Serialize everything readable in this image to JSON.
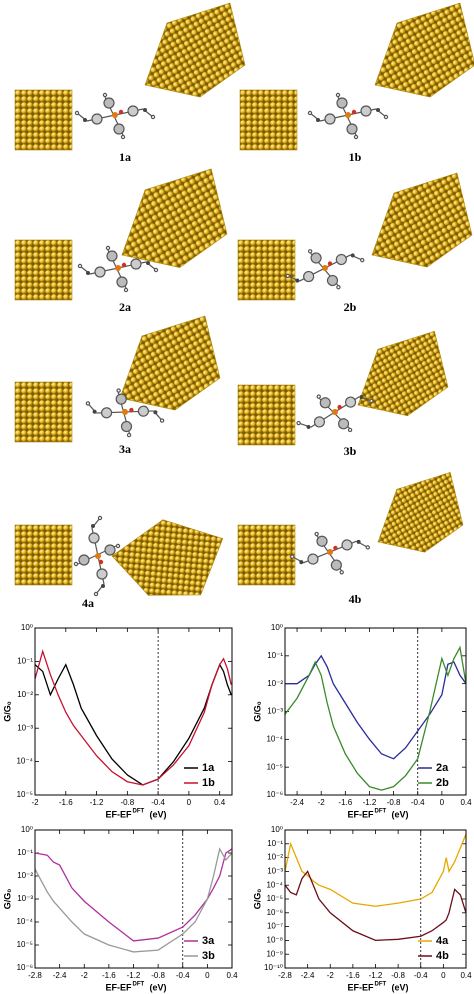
{
  "structures": {
    "labels": [
      "1a",
      "1b",
      "2a",
      "2b",
      "3a",
      "3b",
      "4a",
      "4b"
    ]
  },
  "chart_data": [
    {
      "type": "line",
      "ylog": true,
      "legend": "lower right",
      "vline": -0.4,
      "ylabel": "G/G₀",
      "xlabel": "EF-EF",
      "xlabel_sup": "DFT",
      "xlabel_unit": "(eV)",
      "xlim": [
        -2,
        0.56
      ],
      "xticks": [
        -2,
        -1.6,
        -1.2,
        -0.8,
        -0.4,
        0,
        0.4
      ],
      "ylim": [
        1e-05,
        1
      ],
      "yticks": [
        {
          "value": 1,
          "label": "10⁰"
        },
        {
          "value": 0.1,
          "label": "10⁻¹"
        },
        {
          "value": 0.01,
          "label": "10⁻²"
        },
        {
          "value": 0.001,
          "label": "10⁻³"
        },
        {
          "value": 0.0001,
          "label": "10⁻⁴"
        },
        {
          "value": 1e-05,
          "label": "10⁻⁵"
        }
      ],
      "x": [
        -2,
        -1.9,
        -1.8,
        -1.7,
        -1.6,
        -1.5,
        -1.4,
        -1.2,
        -1.0,
        -0.8,
        -0.6,
        -0.4,
        -0.2,
        0,
        0.2,
        0.3,
        0.4,
        0.45,
        0.5,
        0.55
      ],
      "series": [
        {
          "name": "1a",
          "color": "#000000",
          "values": [
            0.08,
            0.05,
            0.01,
            0.03,
            0.08,
            0.02,
            0.004,
            0.0006,
            0.00012,
            4e-05,
            2e-05,
            3e-05,
            0.0001,
            0.0005,
            0.004,
            0.02,
            0.08,
            0.05,
            0.02,
            0.01
          ]
        },
        {
          "name": "1b",
          "color": "#c8102e",
          "values": [
            0.03,
            0.2,
            0.04,
            0.01,
            0.003,
            0.0012,
            0.0006,
            0.00015,
            5e-05,
            2.5e-05,
            2e-05,
            3e-05,
            8e-05,
            0.0003,
            0.003,
            0.02,
            0.08,
            0.12,
            0.06,
            0.02
          ]
        }
      ]
    },
    {
      "type": "line",
      "ylog": true,
      "legend": "lower right",
      "vline": -0.4,
      "ylabel": "G/G₀",
      "xlabel": "EF-EF",
      "xlabel_sup": "DFT",
      "xlabel_unit": "(eV)",
      "xlim": [
        -2.6,
        0.4
      ],
      "xticks": [
        -2.4,
        -2,
        -1.6,
        -1.2,
        -0.8,
        -0.4,
        0,
        0.4
      ],
      "ylim": [
        1e-06,
        1
      ],
      "yticks": [
        {
          "value": 1,
          "label": "10⁰"
        },
        {
          "value": 0.1,
          "label": "10⁻¹"
        },
        {
          "value": 0.01,
          "label": "10⁻²"
        },
        {
          "value": 0.001,
          "label": "10⁻³"
        },
        {
          "value": 0.0001,
          "label": "10⁻⁴"
        },
        {
          "value": 1e-05,
          "label": "10⁻⁵"
        },
        {
          "value": 1e-06,
          "label": "10⁻⁶"
        }
      ],
      "x": [
        -2.6,
        -2.4,
        -2.2,
        -2.1,
        -2.0,
        -1.9,
        -1.8,
        -1.6,
        -1.4,
        -1.2,
        -1.0,
        -0.8,
        -0.6,
        -0.4,
        -0.2,
        0,
        0.1,
        0.2,
        0.3,
        0.4
      ],
      "series": [
        {
          "name": "2a",
          "color": "#2a2a9a",
          "values": [
            0.01,
            0.01,
            0.02,
            0.05,
            0.1,
            0.04,
            0.01,
            0.002,
            0.0004,
            0.0001,
            3e-05,
            2e-05,
            5e-05,
            0.0002,
            0.0008,
            0.004,
            0.05,
            0.06,
            0.02,
            0.01
          ]
        },
        {
          "name": "2b",
          "color": "#3a8a2a",
          "values": [
            0.0008,
            0.003,
            0.02,
            0.06,
            0.02,
            0.002,
            0.0003,
            3e-05,
            6e-06,
            2e-06,
            1.5e-06,
            2e-06,
            5e-06,
            2e-05,
            0.001,
            0.08,
            0.02,
            0.08,
            0.2,
            0.01
          ]
        }
      ]
    },
    {
      "type": "line",
      "ylog": true,
      "legend": "lower right",
      "vline": -0.4,
      "ylabel": "G/G₀",
      "xlabel": "EF-EF",
      "xlabel_sup": "DFT",
      "xlabel_unit": "(eV)",
      "xlim": [
        -2.8,
        0.4
      ],
      "xticks": [
        -2.8,
        -2.4,
        -2,
        -1.6,
        -1.2,
        -0.8,
        -0.4,
        0,
        0.4
      ],
      "ylim": [
        1e-06,
        1
      ],
      "yticks": [
        {
          "value": 1,
          "label": "10⁰"
        },
        {
          "value": 0.1,
          "label": "10⁻¹"
        },
        {
          "value": 0.01,
          "label": "10⁻²"
        },
        {
          "value": 0.001,
          "label": "10⁻³"
        },
        {
          "value": 0.0001,
          "label": "10⁻⁴"
        },
        {
          "value": 1e-05,
          "label": "10⁻⁵"
        },
        {
          "value": 1e-06,
          "label": "10⁻⁶"
        }
      ],
      "x": [
        -2.8,
        -2.6,
        -2.5,
        -2.4,
        -2.2,
        -2.0,
        -1.6,
        -1.2,
        -0.8,
        -0.4,
        -0.2,
        0,
        0.1,
        0.2,
        0.3,
        0.4
      ],
      "series": [
        {
          "name": "3a",
          "color": "#b0309f",
          "values": [
            0.1,
            0.08,
            0.04,
            0.03,
            0.003,
            0.0008,
            0.0001,
            1.5e-05,
            2e-05,
            6e-05,
            0.0002,
            0.001,
            0.003,
            0.01,
            0.1,
            0.15
          ]
        },
        {
          "name": "3b",
          "color": "#999999",
          "values": [
            0.02,
            0.002,
            0.0008,
            0.0004,
            0.0001,
            3e-05,
            1e-05,
            5e-06,
            6e-06,
            3e-05,
            0.0001,
            0.001,
            0.01,
            0.15,
            0.05,
            0.1
          ]
        }
      ]
    },
    {
      "type": "line",
      "ylog": true,
      "legend": "lower right",
      "vline": -0.4,
      "ylabel": "G/G₀",
      "xlabel": "EF-EF",
      "xlabel_sup": "DFT",
      "xlabel_unit": "(eV)",
      "xlim": [
        -2.8,
        0.4
      ],
      "xticks": [
        -2.8,
        -2.4,
        -2,
        -1.6,
        -1.2,
        -0.8,
        -0.4,
        0,
        0.4
      ],
      "ylim": [
        1e-10,
        1
      ],
      "yticks": [
        {
          "value": 1,
          "label": "10⁰"
        },
        {
          "value": 0.1,
          "label": "10⁻¹"
        },
        {
          "value": 0.01,
          "label": "10⁻²"
        },
        {
          "value": 0.001,
          "label": "10⁻³"
        },
        {
          "value": 0.0001,
          "label": "10⁻⁴"
        },
        {
          "value": 1e-05,
          "label": "10⁻⁵"
        },
        {
          "value": 1e-06,
          "label": "10⁻⁶"
        },
        {
          "value": 1e-07,
          "label": "10⁻⁷"
        },
        {
          "value": 1e-08,
          "label": "10⁻⁸"
        },
        {
          "value": 1e-09,
          "label": "10⁻⁹"
        },
        {
          "value": 1e-10,
          "label": "10⁻¹⁰"
        }
      ],
      "x": [
        -2.8,
        -2.7,
        -2.6,
        -2.5,
        -2.4,
        -2.3,
        -2.2,
        -2.0,
        -1.6,
        -1.2,
        -0.8,
        -0.4,
        -0.2,
        0,
        0.05,
        0.1,
        0.2,
        0.3,
        0.4
      ],
      "series": [
        {
          "name": "4a",
          "color": "#e6a800",
          "values": [
            0.001,
            0.1,
            0.01,
            0.001,
            0.0005,
            0.0002,
            0.0001,
            5e-05,
            5e-06,
            3e-06,
            5e-06,
            1e-05,
            3e-05,
            0.001,
            0.01,
            0.001,
            0.005,
            0.05,
            0.5
          ]
        },
        {
          "name": "4b",
          "color": "#6b0f1a",
          "values": [
            0.0001,
            3e-05,
            2e-05,
            0.0003,
            0.001,
            0.0001,
            1e-05,
            1e-06,
            5e-08,
            1e-08,
            1.2e-08,
            2e-08,
            5e-08,
            2e-07,
            3e-07,
            1e-06,
            5e-05,
            2e-05,
            1e-06
          ]
        }
      ]
    }
  ]
}
